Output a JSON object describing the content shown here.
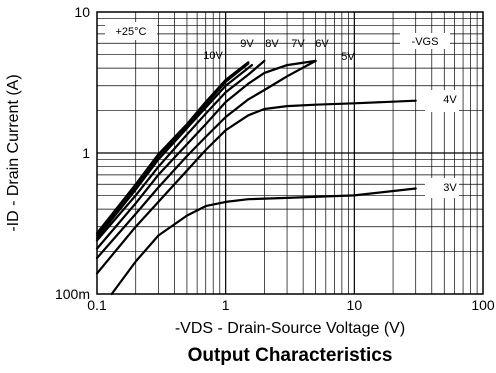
{
  "chart_data": {
    "type": "line",
    "title": "Output Characteristics",
    "xlabel": "-VDS - Drain-Source Voltage (V)",
    "ylabel": "-ID - Drain Current (A)",
    "x_scale": "log",
    "y_scale": "log",
    "xlim": [
      0.1,
      100
    ],
    "ylim": [
      0.1,
      10
    ],
    "x_tick_labels": [
      "0.1",
      "1",
      "10",
      "100"
    ],
    "y_tick_labels": [
      "100m",
      "1",
      "10"
    ],
    "grid": true,
    "annotations": [
      "+25°C",
      "-VGS"
    ],
    "series": [
      {
        "name": "10V",
        "x": [
          0.1,
          0.2,
          0.3,
          0.5,
          0.7,
          1.0,
          1.5
        ],
        "y": [
          0.27,
          0.6,
          0.98,
          1.6,
          2.3,
          3.3,
          4.4
        ]
      },
      {
        "name": "9V",
        "x": [
          0.1,
          0.2,
          0.3,
          0.5,
          0.7,
          1.0,
          1.5
        ],
        "y": [
          0.26,
          0.58,
          0.95,
          1.55,
          2.2,
          3.2,
          4.3
        ]
      },
      {
        "name": "8V",
        "x": [
          0.1,
          0.2,
          0.3,
          0.5,
          0.7,
          1.0,
          1.6
        ],
        "y": [
          0.25,
          0.55,
          0.9,
          1.5,
          2.1,
          3.0,
          4.2
        ]
      },
      {
        "name": "7V",
        "x": [
          0.1,
          0.2,
          0.3,
          0.5,
          0.7,
          1.0,
          1.5,
          2.0
        ],
        "y": [
          0.24,
          0.5,
          0.8,
          1.35,
          1.9,
          2.7,
          3.6,
          4.5
        ]
      },
      {
        "name": "6V",
        "x": [
          0.1,
          0.2,
          0.3,
          0.5,
          0.7,
          1.0,
          1.5,
          2.0,
          3.0,
          5.0
        ],
        "y": [
          0.21,
          0.44,
          0.7,
          1.15,
          1.6,
          2.3,
          3.1,
          3.7,
          4.2,
          4.5
        ]
      },
      {
        "name": "5V",
        "x": [
          0.1,
          0.2,
          0.3,
          0.5,
          0.7,
          1.0,
          1.5,
          2.0,
          3.0,
          5.0
        ],
        "y": [
          0.18,
          0.37,
          0.57,
          0.95,
          1.3,
          1.8,
          2.4,
          2.8,
          3.5,
          4.5
        ]
      },
      {
        "name": "4V",
        "x": [
          0.1,
          0.2,
          0.3,
          0.5,
          0.7,
          1.0,
          1.5,
          2.0,
          3.0,
          5.0,
          10,
          30
        ],
        "y": [
          0.14,
          0.3,
          0.45,
          0.75,
          1.05,
          1.45,
          1.85,
          2.05,
          2.15,
          2.2,
          2.25,
          2.35
        ]
      },
      {
        "name": "3V",
        "x": [
          0.13,
          0.2,
          0.3,
          0.5,
          0.7,
          1.0,
          1.5,
          3.0,
          10,
          30
        ],
        "y": [
          0.1,
          0.17,
          0.26,
          0.36,
          0.42,
          0.45,
          0.47,
          0.48,
          0.5,
          0.56
        ]
      }
    ]
  }
}
